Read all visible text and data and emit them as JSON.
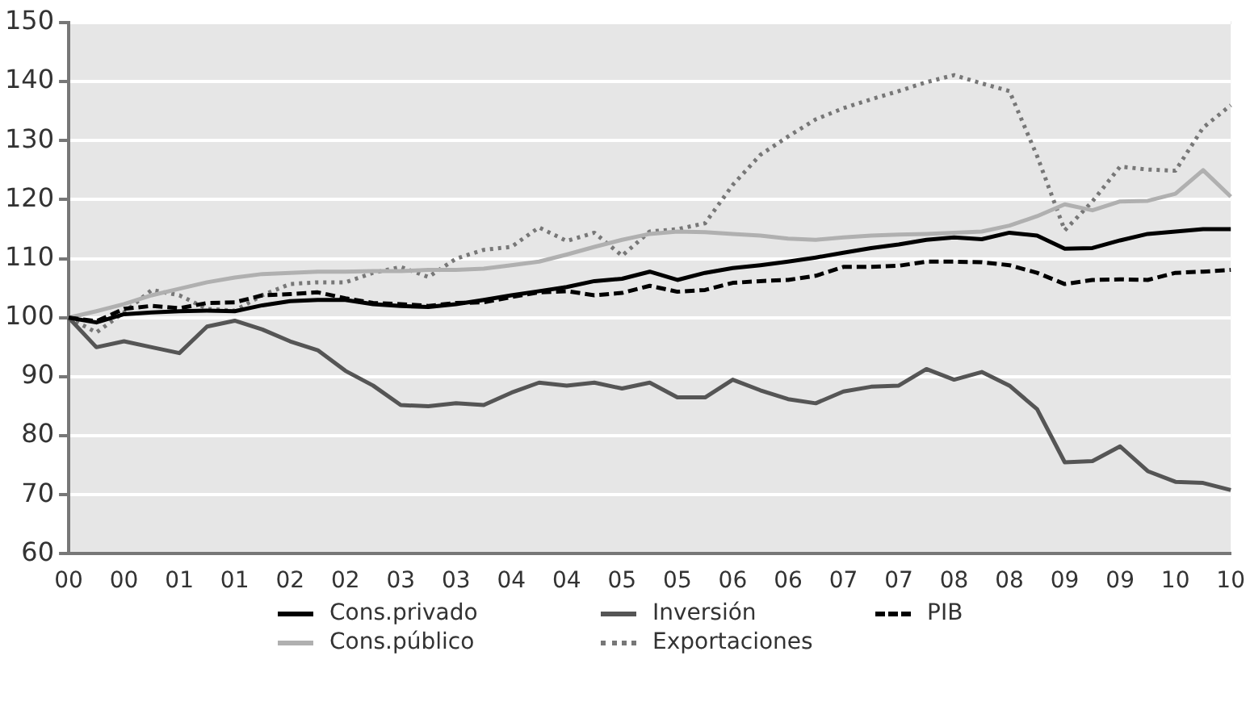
{
  "chart_data": {
    "type": "line",
    "categories": [
      "00",
      null,
      "00",
      null,
      "01",
      null,
      "01",
      null,
      "02",
      null,
      "02",
      null,
      "03",
      null,
      "03",
      null,
      "04",
      null,
      "04",
      null,
      "05",
      null,
      "05",
      null,
      "06",
      null,
      "06",
      null,
      "07",
      null,
      "07",
      null,
      "08",
      null,
      "08",
      null,
      "09",
      null,
      "09",
      null,
      "10",
      null,
      "10"
    ],
    "ylim": [
      60,
      150
    ],
    "yticks": [
      60,
      70,
      80,
      90,
      100,
      110,
      120,
      130,
      140,
      150
    ],
    "grid": "y",
    "legend": "bottom",
    "marker": "none",
    "series": [
      {
        "name": "Cons.privado",
        "color": "#000000",
        "line_style": "solid",
        "values": [
          100,
          99.2,
          100.6,
          100.9,
          101.1,
          101.2,
          101.1,
          102.1,
          102.8,
          103.0,
          103.0,
          102.3,
          102.0,
          101.8,
          102.3,
          103.0,
          103.8,
          104.5,
          105.2,
          106.2,
          106.6,
          107.8,
          106.4,
          107.6,
          108.4,
          108.9,
          109.5,
          110.2,
          111.0,
          111.8,
          112.4,
          113.2,
          113.6,
          113.3,
          114.4,
          113.9,
          111.7,
          111.8,
          113.1,
          114.2,
          114.6,
          115.0,
          115.0
        ]
      },
      {
        "name": "Inversión",
        "color": "#555555",
        "line_style": "solid",
        "values": [
          100,
          95,
          96,
          95,
          94,
          98.5,
          99.5,
          98,
          96,
          94.5,
          91,
          88.5,
          85.2,
          85,
          85.5,
          85.2,
          87.3,
          89,
          88.5,
          89,
          88,
          89,
          86.5,
          86.5,
          89.5,
          87.7,
          86.2,
          85.5,
          87.5,
          88.3,
          88.5,
          91.3,
          89.5,
          90.8,
          88.5,
          84.5,
          75.5,
          75.7,
          78.2,
          74,
          72.2,
          72,
          70.8
        ]
      },
      {
        "name": "PIB",
        "color": "#000000",
        "line_style": "dashed",
        "values": [
          100,
          99.4,
          101.5,
          102.0,
          101.6,
          102.5,
          102.6,
          103.8,
          104.0,
          104.3,
          103.3,
          102.5,
          102.3,
          102.0,
          102.5,
          102.6,
          103.5,
          104.3,
          104.5,
          103.8,
          104.2,
          105.4,
          104.4,
          104.7,
          105.9,
          106.2,
          106.4,
          107.1,
          108.6,
          108.6,
          108.8,
          109.5,
          109.5,
          109.4,
          108.9,
          107.6,
          105.7,
          106.4,
          106.5,
          106.4,
          107.6,
          107.8,
          108.1
        ]
      },
      {
        "name": "Cons.público",
        "color": "#b0b0b0",
        "line_style": "solid",
        "values": [
          100,
          101.1,
          102.3,
          103.8,
          104.9,
          106.0,
          106.8,
          107.4,
          107.6,
          107.8,
          107.8,
          107.9,
          107.9,
          108.1,
          108.1,
          108.3,
          108.9,
          109.5,
          110.7,
          112.0,
          113.2,
          114.2,
          114.6,
          114.5,
          114.2,
          113.9,
          113.4,
          113.2,
          113.6,
          113.9,
          114.1,
          114.2,
          114.4,
          114.6,
          115.6,
          117.2,
          119.2,
          118.2,
          119.7,
          119.8,
          121.0,
          125.0,
          120.5
        ]
      },
      {
        "name": "Exportaciones",
        "color": "#777777",
        "line_style": "dotted",
        "values": [
          100,
          97.5,
          100.9,
          104.7,
          103.8,
          101.5,
          101.2,
          103.8,
          105.7,
          106.0,
          106.0,
          107.6,
          108.6,
          106.9,
          110.0,
          111.5,
          112.0,
          115.3,
          113.0,
          114.4,
          110.5,
          114.6,
          115.0,
          116.0,
          122.5,
          127.6,
          130.7,
          133.6,
          135.5,
          137.0,
          138.4,
          139.9,
          141.1,
          139.7,
          138.4,
          127.4,
          114.8,
          119.7,
          125.6,
          125.1,
          124.9,
          132.2,
          136.0
        ]
      }
    ]
  }
}
